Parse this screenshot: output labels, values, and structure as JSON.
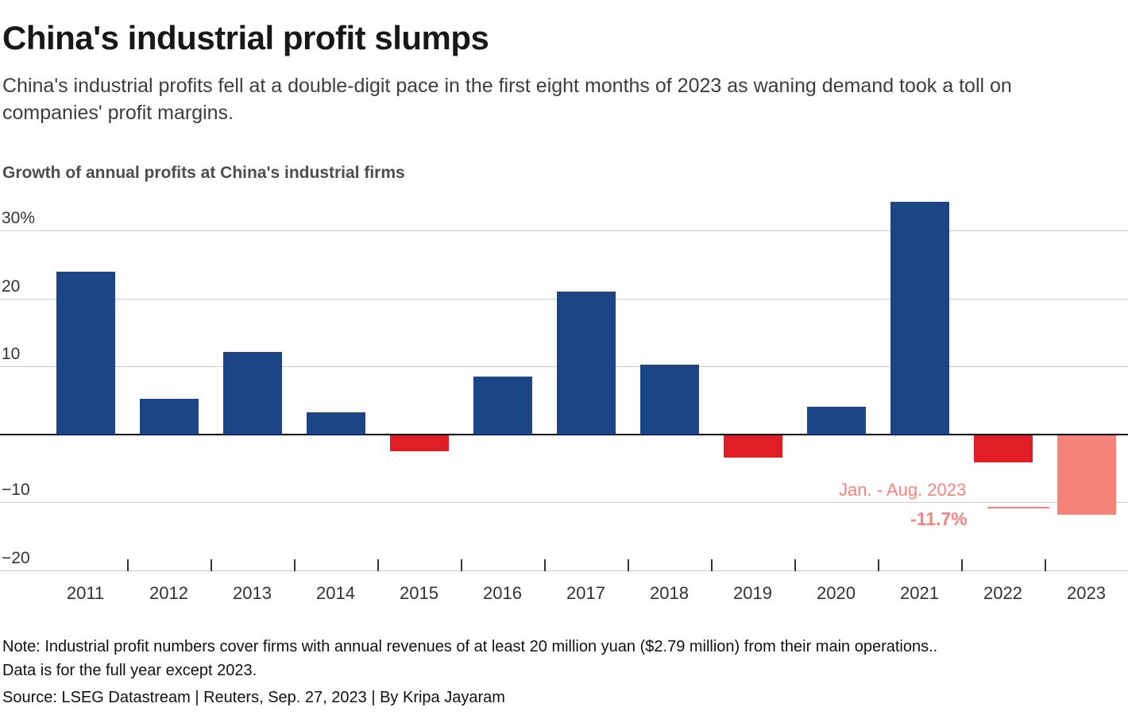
{
  "header": {
    "title": "China's industrial profit slumps",
    "subtitle": "China's industrial profits fell at a double-digit pace in the first eight months of 2023 as waning demand took a toll on companies' profit margins.",
    "chart_label": "Growth of annual profits at China's industrial firms"
  },
  "chart_data": {
    "type": "bar",
    "title": "Growth of annual profits at China's industrial firms",
    "categories": [
      "2011",
      "2012",
      "2013",
      "2014",
      "2015",
      "2016",
      "2017",
      "2018",
      "2019",
      "2020",
      "2021",
      "2022",
      "2023"
    ],
    "values": [
      24,
      5.3,
      12.2,
      3.3,
      -2.3,
      8.5,
      21,
      10.3,
      -3.3,
      4.1,
      34.3,
      -4,
      -11.7
    ],
    "xlabel": "",
    "ylabel": "",
    "ylim": [
      -20,
      34.5
    ],
    "grid": true,
    "yticks": [
      {
        "value": 30,
        "label": "30%"
      },
      {
        "value": 20,
        "label": "20"
      },
      {
        "value": 10,
        "label": "10"
      },
      {
        "value": 0,
        "label": ""
      },
      {
        "value": -10,
        "label": "−10"
      },
      {
        "value": -20,
        "label": "−20"
      }
    ],
    "colors": {
      "positive": "#1b4584",
      "negative": "#e11d25",
      "highlight": "#f5837b"
    },
    "highlight_index": 12,
    "annotation": {
      "label": "Jan. - Aug. 2023",
      "value_label": "-11.7%"
    }
  },
  "footer": {
    "note_line1": "Note: Industrial profit numbers cover firms with annual revenues of at least 20 million yuan ($2.79 million) from their main operations..",
    "note_line2": "Data is for the full year except 2023.",
    "source": "Source: LSEG Datastream | Reuters, Sep. 27, 2023 | By Kripa Jayaram"
  }
}
